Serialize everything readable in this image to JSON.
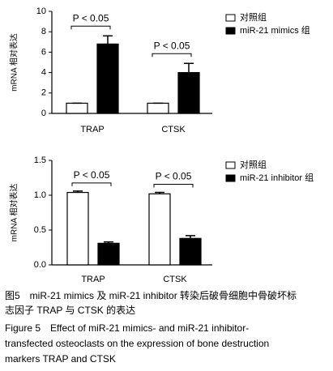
{
  "chart_data": [
    {
      "type": "bar",
      "y_label": "mRNA 相对表达",
      "categories": [
        "TRAP",
        "CTSK"
      ],
      "series": [
        {
          "name": "对照组",
          "color": "#ffffff",
          "values": [
            1,
            1
          ],
          "errors": [
            0,
            0
          ]
        },
        {
          "name": "miR-21 mimics 组",
          "color": "#000000",
          "values": [
            6.8,
            4.0
          ],
          "errors": [
            0.8,
            0.9
          ]
        }
      ],
      "ylim": [
        0,
        10
      ],
      "yticks": [
        0,
        2,
        4,
        6,
        8,
        10
      ],
      "annotations": [
        {
          "text": "P < 0.05",
          "category": 0
        },
        {
          "text": "P < 0.05",
          "category": 1
        }
      ]
    },
    {
      "type": "bar",
      "y_label": "mRNA 相对表达",
      "categories": [
        "TRAP",
        "CTSK"
      ],
      "series": [
        {
          "name": "对照组",
          "color": "#ffffff",
          "values": [
            1.04,
            1.02
          ],
          "errors": [
            0.02,
            0.02
          ]
        },
        {
          "name": "miR-21 inhibitor 组",
          "color": "#000000",
          "values": [
            0.31,
            0.38
          ],
          "errors": [
            0.02,
            0.04
          ]
        }
      ],
      "ylim": [
        0,
        1.5
      ],
      "yticks": [
        {
          "value": 0,
          "label": "0.0"
        },
        {
          "value": 0.5,
          "label": "0.5"
        },
        {
          "value": 1,
          "label": "1.0"
        },
        {
          "value": 1.5,
          "label": "1.5"
        }
      ],
      "annotations": [
        {
          "text": "P < 0.05",
          "category": 0
        },
        {
          "text": "P < 0.05",
          "category": 1
        }
      ]
    }
  ],
  "caption": [
    "图5　miR-21 mimics 及 miR-21 inhibitor 转染后破骨细胞中骨破坏标",
    "志因子 TRAP 与 CTSK 的表达",
    "Figure 5　Effect of miR-21 mimics- and miR-21 inhibitor-",
    "transfected osteoclasts on the expression of bone destruction",
    "markers TRAP and CTSK"
  ]
}
